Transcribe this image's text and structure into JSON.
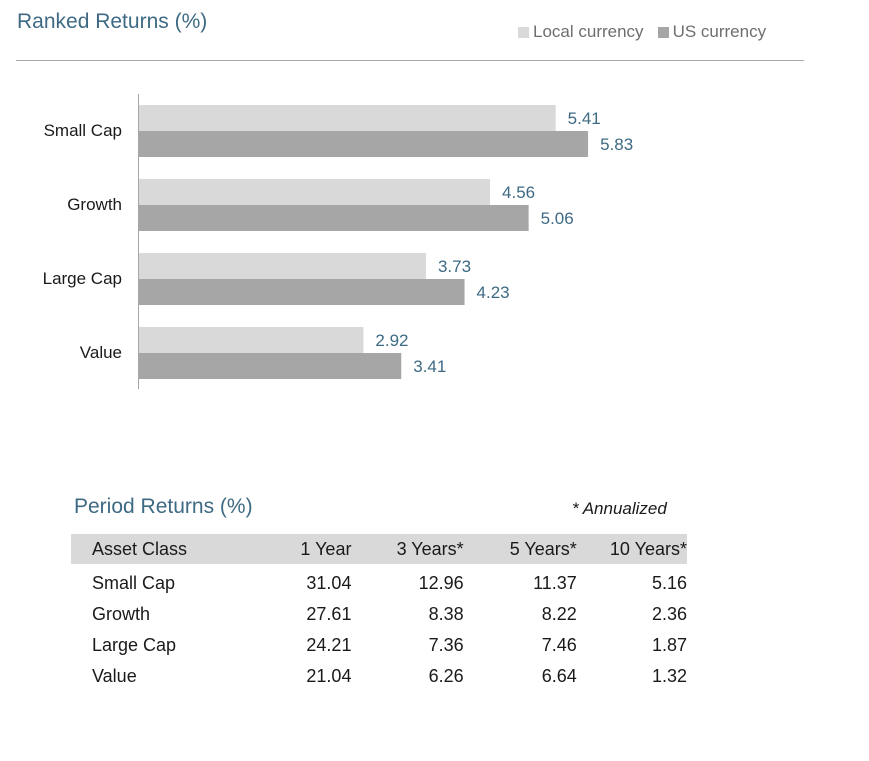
{
  "colors": {
    "local": "#d9d9d9",
    "us": "#a6a6a6",
    "accent": "#3e6a84"
  },
  "chart_data": {
    "type": "bar",
    "orientation": "horizontal",
    "title": "Ranked Returns (%)",
    "categories": [
      "Small Cap",
      "Growth",
      "Large Cap",
      "Value"
    ],
    "series": [
      {
        "name": "Local currency",
        "values": [
          5.41,
          4.56,
          3.73,
          2.92
        ]
      },
      {
        "name": "US currency",
        "values": [
          5.83,
          5.06,
          4.23,
          3.41
        ]
      }
    ],
    "xlim": [
      0,
      6
    ],
    "grid": false,
    "legend": "top-right"
  },
  "table": {
    "title": "Period Returns (%)",
    "note": "* Annualized",
    "headers": [
      "Asset Class",
      "1 Year",
      "3 Years*",
      "5 Years*",
      "10 Years*"
    ],
    "rows": [
      [
        "Small Cap",
        "31.04",
        "12.96",
        "11.37",
        "5.16"
      ],
      [
        "Growth",
        "27.61",
        "8.38",
        "8.22",
        "2.36"
      ],
      [
        "Large Cap",
        "24.21",
        "7.36",
        "7.46",
        "1.87"
      ],
      [
        "Value",
        "21.04",
        "6.26",
        "6.64",
        "1.32"
      ]
    ]
  }
}
